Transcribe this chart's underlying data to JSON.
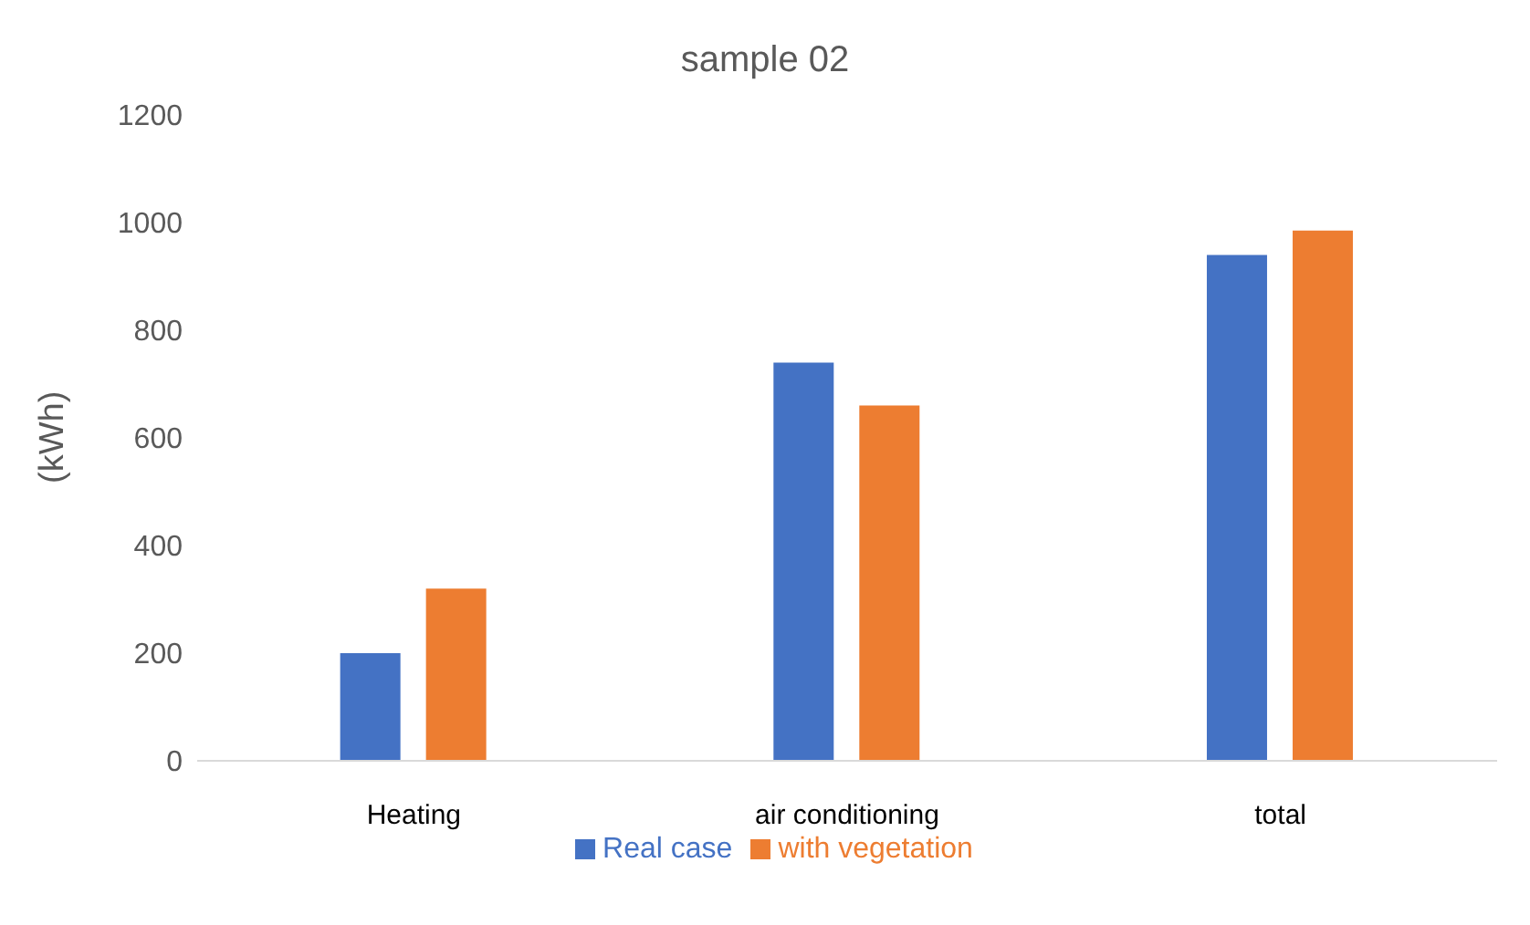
{
  "chart_data": {
    "type": "bar",
    "title": "sample 02",
    "ylabel": "(kWh)",
    "categories": [
      "Heating",
      "air conditioning",
      "total"
    ],
    "series": [
      {
        "name": "Real case",
        "color": "#4472c4",
        "values": [
          200,
          740,
          940
        ]
      },
      {
        "name": "with vegetation",
        "color": "#ed7d31",
        "values": [
          320,
          660,
          985
        ]
      }
    ],
    "ylim": [
      0,
      1200
    ],
    "yticks": [
      0,
      200,
      400,
      600,
      800,
      1000,
      1200
    ],
    "grid": false,
    "legend": "bottom"
  }
}
